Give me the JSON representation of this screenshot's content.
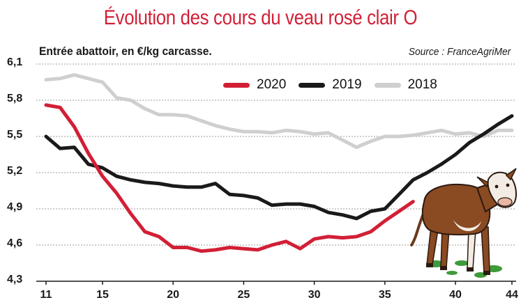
{
  "header": {
    "title": "Évolution des cours du veau rosé clair O",
    "subtitle": "Entrée abattoir, en €/kg carcasse.",
    "source": "Source : FranceAgriMer"
  },
  "colors": {
    "title": "#d21f36",
    "series_2020": "#d21f36",
    "series_2019": "#1a1a1a",
    "series_2018": "#cfcfcf",
    "grid": "#9a9a9a"
  },
  "illustration": {
    "icon": "calf-icon"
  },
  "chart_data": {
    "type": "line",
    "title": "Évolution des cours du veau rosé clair O",
    "subtitle": "Entrée abattoir, en €/kg carcasse.",
    "xlim": [
      11,
      44
    ],
    "ylim": [
      4.3,
      6.1
    ],
    "xticks": [
      11,
      15,
      20,
      25,
      30,
      35,
      40,
      44
    ],
    "yticks": [
      4.3,
      4.6,
      4.9,
      5.2,
      5.5,
      5.8,
      6.1
    ],
    "ytick_labels": [
      "4,3",
      "4,6",
      "4,9",
      "5,2",
      "5,5",
      "5,8",
      "6,1"
    ],
    "grid": "horizontal",
    "legend_position": "top",
    "series": [
      {
        "name": "2020",
        "color": "#d21f36",
        "x": [
          11,
          12,
          13,
          14,
          15,
          16,
          17,
          18,
          19,
          20,
          21,
          22,
          23,
          24,
          25,
          26,
          27,
          28,
          29,
          30,
          31,
          32,
          33,
          34,
          35,
          36,
          37
        ],
        "values": [
          5.76,
          5.74,
          5.58,
          5.36,
          5.17,
          5.03,
          4.86,
          4.71,
          4.67,
          4.58,
          4.58,
          4.55,
          4.56,
          4.58,
          4.57,
          4.56,
          4.6,
          4.63,
          4.57,
          4.65,
          4.67,
          4.66,
          4.67,
          4.71,
          4.8,
          4.88,
          4.96
        ]
      },
      {
        "name": "2019",
        "color": "#1a1a1a",
        "x": [
          11,
          12,
          13,
          14,
          15,
          16,
          17,
          18,
          19,
          20,
          21,
          22,
          23,
          24,
          25,
          26,
          27,
          28,
          29,
          30,
          31,
          32,
          33,
          34,
          35,
          36,
          37,
          38,
          39,
          40,
          41,
          42,
          43,
          44
        ],
        "values": [
          5.5,
          5.4,
          5.41,
          5.27,
          5.24,
          5.17,
          5.14,
          5.12,
          5.11,
          5.09,
          5.08,
          5.08,
          5.11,
          5.02,
          5.01,
          4.99,
          4.93,
          4.94,
          4.94,
          4.92,
          4.87,
          4.85,
          4.82,
          4.88,
          4.9,
          5.02,
          5.14,
          5.2,
          5.27,
          5.35,
          5.45,
          5.52,
          5.6,
          5.67
        ]
      },
      {
        "name": "2018",
        "color": "#cfcfcf",
        "x": [
          11,
          12,
          13,
          14,
          15,
          16,
          17,
          18,
          19,
          20,
          21,
          22,
          23,
          24,
          25,
          26,
          27,
          28,
          29,
          30,
          31,
          32,
          33,
          34,
          35,
          36,
          37,
          38,
          39,
          40,
          41,
          42,
          43,
          44
        ],
        "values": [
          5.97,
          5.98,
          6.01,
          5.98,
          5.95,
          5.82,
          5.8,
          5.73,
          5.68,
          5.68,
          5.67,
          5.63,
          5.59,
          5.56,
          5.54,
          5.54,
          5.53,
          5.55,
          5.54,
          5.52,
          5.53,
          5.47,
          5.41,
          5.46,
          5.5,
          5.5,
          5.51,
          5.53,
          5.55,
          5.52,
          5.53,
          5.5,
          5.55,
          5.55
        ]
      }
    ]
  }
}
